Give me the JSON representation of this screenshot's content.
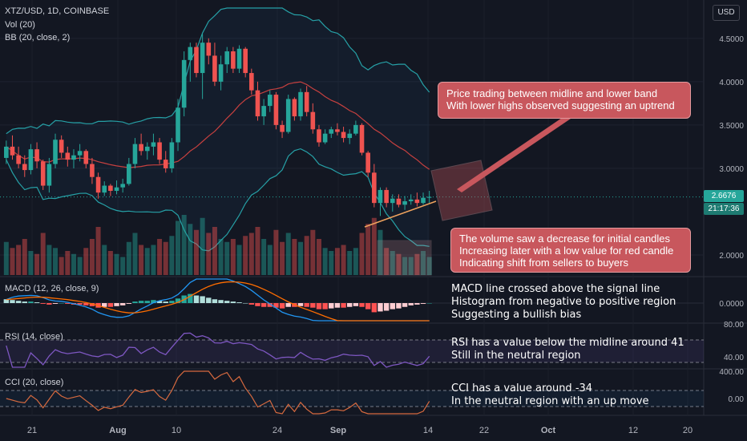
{
  "header": {
    "symbol_line": "XTZ/USD, 1D, COINBASE",
    "vol_label": "Vol (20)",
    "bb_label": "BB (20, close, 2)",
    "currency_button": "USD"
  },
  "price_scale": {
    "ticks": [
      "4.5000",
      "4.0000",
      "3.5000",
      "3.0000",
      "2.0000"
    ]
  },
  "price_tags": {
    "last_price": "2.6676",
    "countdown": "21:17:36"
  },
  "macd": {
    "label": "MACD (12, 26, close, 9)",
    "ticks": [
      "0.0000"
    ]
  },
  "rsi": {
    "label": "RSI (14, close)",
    "ticks": [
      "80.00",
      "40.00"
    ]
  },
  "cci": {
    "label": "CCI (20, close)",
    "ticks": [
      "400.00",
      "0.00"
    ]
  },
  "time_axis": {
    "labels": [
      "21",
      "Aug",
      "10",
      "24",
      "Sep",
      "14",
      "22",
      "Oct",
      "12",
      "20"
    ]
  },
  "annotations": {
    "price_box": [
      "Price trading between midline and lower band",
      "With lower highs observed suggesting an uptrend"
    ],
    "volume_box": [
      "The volume saw a decrease for initial candles",
      "Increasing later with a low value for red candle",
      "Indicating shift from sellers to buyers"
    ],
    "macd_text": [
      "MACD line crossed above the signal line",
      "Histogram from negative to positive region",
      "Suggesting a bullish bias"
    ],
    "rsi_text": [
      "RSI has a value below the midline around 41",
      "Still in the neutral region"
    ],
    "cci_text": [
      "CCI has a value around -34",
      "In the neutral region with an up move"
    ]
  },
  "colors": {
    "up": "#26a69a",
    "down": "#ef5350",
    "annotation": "#c8575d",
    "rsi_band": "#7e57c2",
    "bb": "#2196f3"
  },
  "chart_data": {
    "type": "candlestick",
    "symbol": "XTZ/USD",
    "interval": "1D",
    "exchange": "COINBASE",
    "ylim": [
      1.75,
      4.85
    ],
    "x_range_days": [
      0,
      115
    ],
    "candles": [
      [
        3.12,
        3.32,
        3.05,
        3.25
      ],
      [
        3.25,
        3.38,
        3.1,
        3.15
      ],
      [
        3.15,
        3.25,
        3.0,
        3.05
      ],
      [
        3.05,
        3.15,
        2.9,
        2.98
      ],
      [
        2.98,
        3.28,
        2.93,
        3.22
      ],
      [
        3.22,
        3.3,
        3.0,
        3.08
      ],
      [
        3.08,
        3.1,
        2.75,
        2.8
      ],
      [
        2.8,
        3.12,
        2.72,
        3.05
      ],
      [
        3.05,
        3.4,
        3.0,
        3.33
      ],
      [
        3.33,
        3.38,
        3.12,
        3.18
      ],
      [
        3.18,
        3.25,
        3.02,
        3.1
      ],
      [
        3.1,
        3.22,
        3.0,
        3.15
      ],
      [
        3.15,
        3.28,
        3.08,
        3.2
      ],
      [
        3.2,
        3.22,
        3.0,
        3.05
      ],
      [
        3.05,
        3.12,
        2.82,
        2.9
      ],
      [
        2.9,
        2.95,
        2.65,
        2.72
      ],
      [
        2.72,
        2.85,
        2.68,
        2.8
      ],
      [
        2.8,
        2.82,
        2.68,
        2.74
      ],
      [
        2.74,
        2.86,
        2.7,
        2.78
      ],
      [
        2.78,
        2.88,
        2.72,
        2.82
      ],
      [
        2.82,
        3.12,
        2.8,
        3.05
      ],
      [
        3.05,
        3.35,
        3.0,
        3.28
      ],
      [
        3.28,
        3.4,
        3.15,
        3.2
      ],
      [
        3.2,
        3.3,
        3.1,
        3.25
      ],
      [
        3.25,
        3.4,
        3.15,
        3.3
      ],
      [
        3.3,
        3.35,
        3.05,
        3.1
      ],
      [
        3.1,
        3.2,
        2.95,
        3.0
      ],
      [
        3.0,
        3.35,
        2.95,
        3.3
      ],
      [
        3.3,
        3.8,
        3.2,
        3.7
      ],
      [
        3.7,
        4.35,
        3.6,
        4.25
      ],
      [
        4.25,
        4.45,
        4.0,
        4.4
      ],
      [
        4.4,
        4.45,
        4.05,
        4.1
      ],
      [
        4.1,
        4.55,
        3.8,
        4.45
      ],
      [
        4.45,
        4.5,
        4.2,
        4.3
      ],
      [
        4.3,
        4.45,
        3.95,
        4.0
      ],
      [
        4.0,
        4.3,
        3.9,
        4.2
      ],
      [
        4.2,
        4.4,
        4.1,
        4.35
      ],
      [
        4.35,
        4.4,
        4.1,
        4.15
      ],
      [
        4.15,
        4.42,
        4.1,
        4.38
      ],
      [
        4.38,
        4.4,
        4.05,
        4.1
      ],
      [
        4.1,
        4.15,
        3.85,
        3.9
      ],
      [
        3.9,
        4.0,
        3.55,
        3.6
      ],
      [
        3.6,
        3.8,
        3.5,
        3.72
      ],
      [
        3.72,
        3.9,
        3.65,
        3.85
      ],
      [
        3.85,
        3.88,
        3.45,
        3.5
      ],
      [
        3.5,
        3.55,
        3.35,
        3.42
      ],
      [
        3.42,
        3.85,
        3.4,
        3.8
      ],
      [
        3.8,
        3.82,
        3.55,
        3.6
      ],
      [
        3.6,
        3.92,
        3.55,
        3.88
      ],
      [
        3.88,
        3.95,
        3.6,
        3.65
      ],
      [
        3.65,
        3.75,
        3.4,
        3.45
      ],
      [
        3.45,
        3.5,
        3.25,
        3.3
      ],
      [
        3.3,
        3.45,
        3.28,
        3.4
      ],
      [
        3.4,
        3.48,
        3.35,
        3.45
      ],
      [
        3.45,
        3.52,
        3.38,
        3.42
      ],
      [
        3.42,
        3.48,
        3.3,
        3.35
      ],
      [
        3.35,
        3.45,
        3.28,
        3.4
      ],
      [
        3.4,
        3.55,
        3.38,
        3.5
      ],
      [
        3.5,
        3.52,
        3.15,
        3.18
      ],
      [
        3.18,
        3.2,
        2.9,
        2.95
      ],
      [
        2.95,
        3.05,
        2.55,
        2.6
      ],
      [
        2.6,
        2.78,
        2.45,
        2.75
      ],
      [
        2.75,
        2.78,
        2.55,
        2.6
      ],
      [
        2.6,
        2.7,
        2.5,
        2.65
      ],
      [
        2.65,
        2.7,
        2.55,
        2.58
      ],
      [
        2.58,
        2.68,
        2.52,
        2.62
      ],
      [
        2.62,
        2.7,
        2.58,
        2.64
      ],
      [
        2.64,
        2.72,
        2.56,
        2.6
      ],
      [
        2.6,
        2.72,
        2.58,
        2.66
      ],
      [
        2.66,
        2.74,
        2.6,
        2.67
      ]
    ],
    "volume": [
      0.55,
      0.45,
      0.5,
      0.6,
      0.4,
      0.35,
      0.7,
      0.5,
      0.45,
      0.3,
      0.4,
      0.35,
      0.3,
      0.45,
      0.6,
      0.8,
      0.5,
      0.4,
      0.35,
      0.3,
      0.55,
      0.7,
      0.5,
      0.45,
      0.5,
      0.6,
      0.55,
      0.65,
      0.9,
      1.0,
      0.85,
      0.75,
      0.95,
      0.7,
      0.8,
      0.6,
      0.55,
      0.6,
      0.5,
      0.65,
      0.7,
      0.8,
      0.6,
      0.5,
      0.75,
      0.55,
      0.7,
      0.6,
      0.55,
      0.65,
      0.75,
      0.6,
      0.45,
      0.4,
      0.45,
      0.5,
      0.4,
      0.45,
      0.7,
      0.85,
      0.95,
      0.75,
      0.45,
      0.4,
      0.35,
      0.3,
      0.3,
      0.35,
      0.4,
      0.3
    ],
    "macd_hist": [
      0.05,
      0.04,
      0.03,
      0.02,
      0.02,
      0.01,
      -0.01,
      -0.02,
      -0.01,
      0.0,
      -0.01,
      -0.02,
      -0.02,
      -0.03,
      -0.04,
      -0.06,
      -0.05,
      -0.05,
      -0.04,
      -0.03,
      -0.01,
      0.02,
      0.03,
      0.03,
      0.04,
      0.03,
      0.02,
      0.03,
      0.06,
      0.1,
      0.12,
      0.1,
      0.09,
      0.07,
      0.05,
      0.04,
      0.03,
      0.02,
      0.01,
      0.0,
      -0.02,
      -0.04,
      -0.05,
      -0.05,
      -0.06,
      -0.07,
      -0.05,
      -0.05,
      -0.04,
      -0.05,
      -0.06,
      -0.08,
      -0.08,
      -0.07,
      -0.06,
      -0.06,
      -0.05,
      -0.04,
      -0.05,
      -0.08,
      -0.12,
      -0.11,
      -0.1,
      -0.08,
      -0.07,
      -0.05,
      -0.03,
      -0.02,
      -0.01,
      0.0
    ],
    "rsi_latest": 41,
    "cci_latest": -34
  }
}
